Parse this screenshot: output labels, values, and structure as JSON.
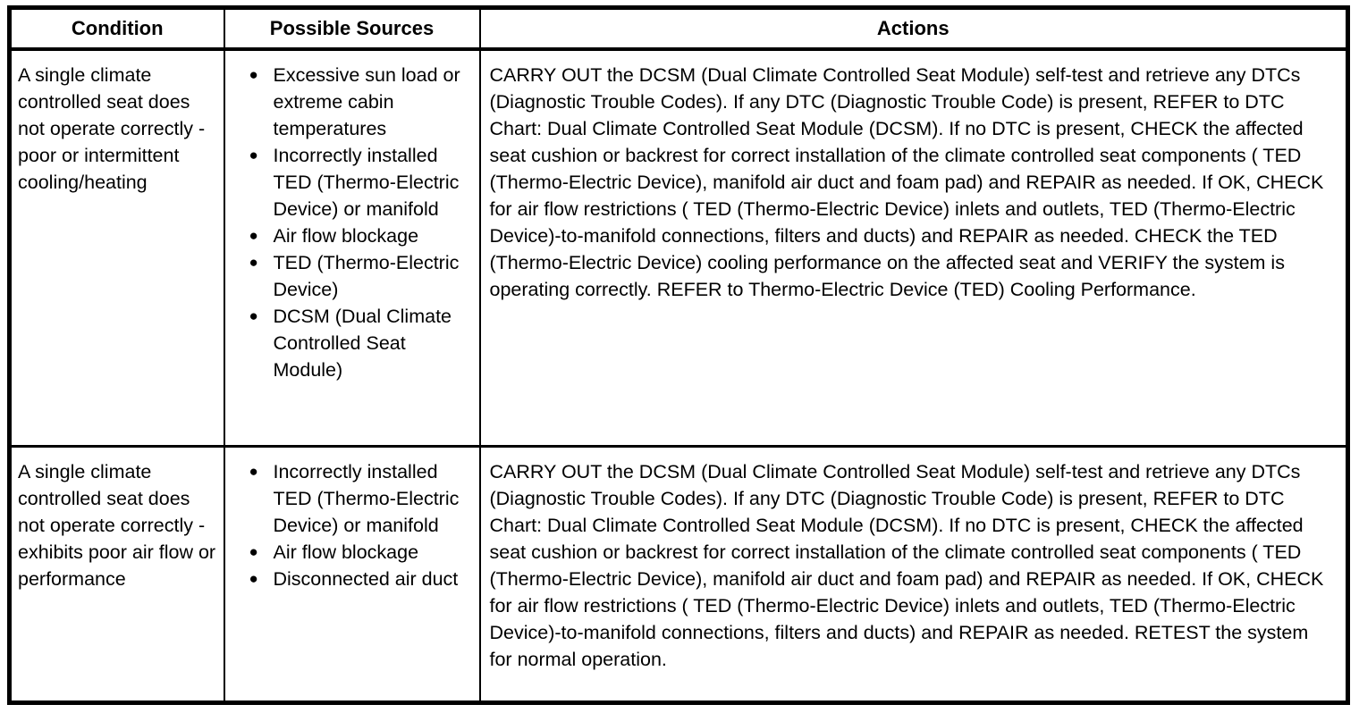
{
  "icons": {
    "bullet": "●"
  },
  "colors": {
    "border": "#000000",
    "text": "#000000",
    "background": "#ffffff"
  },
  "table": {
    "headers": [
      "Condition",
      "Possible Sources",
      "Actions"
    ],
    "rows": [
      {
        "condition": "A single climate controlled seat does not operate correctly - poor or intermittent cooling/heating",
        "sources": [
          "Excessive sun load or extreme cabin temperatures",
          "Incorrectly installed TED (Thermo-Electric Device) or manifold",
          "Air flow blockage",
          "TED (Thermo-Electric Device)",
          "DCSM (Dual Climate Controlled Seat Module)"
        ],
        "actions": "CARRY OUT the DCSM (Dual Climate Controlled Seat Module) self-test and retrieve any DTCs (Diagnostic Trouble Codes). If any DTC (Diagnostic Trouble Code) is present, REFER to DTC Chart: Dual Climate Controlled Seat Module (DCSM). If no DTC is present, CHECK the affected seat cushion or backrest for correct installation of the climate controlled seat components ( TED (Thermo-Electric Device), manifold air duct and foam pad) and REPAIR as needed. If OK, CHECK for air flow restrictions ( TED (Thermo-Electric Device) inlets and outlets, TED (Thermo-Electric Device)-to-manifold connections, filters and ducts) and REPAIR as needed. CHECK the TED (Thermo-Electric Device) cooling performance on the affected seat and VERIFY the system is operating correctly. REFER to Thermo-Electric Device (TED) Cooling Performance."
      },
      {
        "condition": "A single climate controlled seat does not operate correctly - exhibits poor air flow or performance",
        "sources": [
          "Incorrectly installed TED (Thermo-Electric Device) or manifold",
          "Air flow blockage",
          "Disconnected air duct"
        ],
        "actions": "CARRY OUT the DCSM (Dual Climate Controlled Seat Module) self-test and retrieve any DTCs (Diagnostic Trouble Codes). If any DTC (Diagnostic Trouble Code) is present, REFER to DTC Chart: Dual Climate Controlled Seat Module (DCSM). If no DTC is present, CHECK the affected seat cushion or backrest for correct installation of the climate controlled seat components ( TED (Thermo-Electric Device), manifold air duct and foam pad) and REPAIR as needed. If OK, CHECK for air flow restrictions ( TED (Thermo-Electric Device) inlets and outlets, TED (Thermo-Electric Device)-to-manifold connections, filters and ducts) and REPAIR as needed. RETEST the system for normal operation."
      }
    ]
  }
}
